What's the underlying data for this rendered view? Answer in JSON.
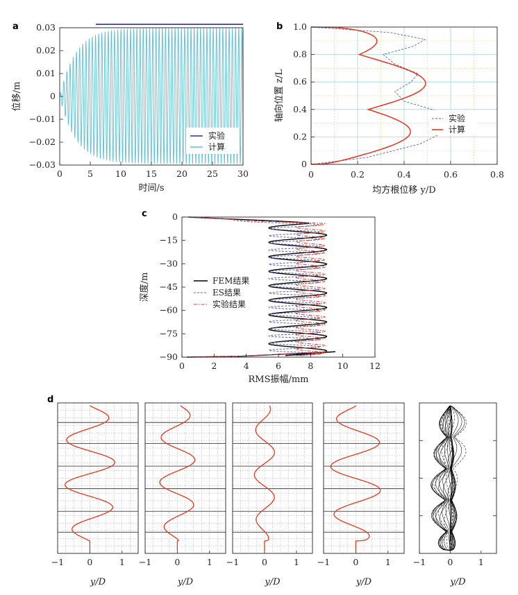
{
  "chart_data": [
    {
      "id": "a",
      "type": "line",
      "panel_label": "a",
      "xlabel": "时间/s",
      "ylabel": "位移/m",
      "xlim": [
        0,
        30
      ],
      "ylim": [
        -0.03,
        0.03
      ],
      "xticks": [
        0,
        5,
        10,
        15,
        20,
        25,
        30
      ],
      "xtick_labels": [
        "0",
        "5",
        "10",
        "15",
        "20",
        "25",
        "30"
      ],
      "yticks": [
        0.03,
        0.02,
        0.01,
        0,
        -0.01,
        -0.02,
        -0.03
      ],
      "ytick_labels": [
        "0.03",
        "0.02",
        "0.01",
        "0",
        "−0.01",
        "−0.02",
        "−0.03"
      ],
      "series": [
        {
          "name": "实验",
          "color": "#2b2f8f",
          "style": "solid",
          "x": [
            5.9,
            30
          ],
          "y": [
            0.0315,
            0.0315
          ]
        },
        {
          "name": "计算",
          "color": "#5bbfd0",
          "style": "oscillation",
          "frequency_hz": 1.92,
          "growth_tau_s": 2.6,
          "amplitude_pos": 0.0298,
          "amplitude_neg": 0.0293,
          "x_range": [
            0,
            30
          ]
        }
      ],
      "legend_position": "lower-right",
      "grid": false
    },
    {
      "id": "b",
      "type": "line",
      "panel_label": "b",
      "xlabel": "均方根位移 y/D",
      "ylabel": "轴向位置 z/L",
      "xlim": [
        0,
        0.8
      ],
      "ylim": [
        0,
        1.0
      ],
      "xticks": [
        0,
        0.2,
        0.4,
        0.6,
        0.8
      ],
      "xtick_labels": [
        "0",
        "0.2",
        "0.4",
        "0.6",
        "0.8"
      ],
      "yticks": [
        0,
        0.2,
        0.4,
        0.6,
        0.8,
        1.0
      ],
      "ytick_labels": [
        "0",
        "0.2",
        "0.4",
        "0.6",
        "0.8",
        "1.0"
      ],
      "series": [
        {
          "name": "实验",
          "color": "#5a5fb0",
          "style": "dashed",
          "x": [
            0,
            0.24,
            0.47,
            0.6,
            0.63,
            0.52,
            0.4,
            0.36,
            0.43,
            0.46,
            0.36,
            0.31,
            0.44,
            0.49,
            0.34,
            0.0
          ],
          "y": [
            0,
            0.05,
            0.15,
            0.26,
            0.33,
            0.4,
            0.46,
            0.53,
            0.6,
            0.66,
            0.73,
            0.8,
            0.86,
            0.91,
            0.96,
            1.0
          ]
        },
        {
          "name": "计算",
          "color": "#e8341c",
          "style": "solid",
          "model": "abs_sin",
          "amplitude": 0.5,
          "cycles": 2.5,
          "baseline": 0.25
        }
      ],
      "legend_position": "middle-right",
      "grid": true
    },
    {
      "id": "c",
      "type": "line",
      "panel_label": "c",
      "xlabel": "RMS振幅/mm",
      "ylabel": "深度/m",
      "xlim": [
        0,
        12
      ],
      "ylim": [
        -90,
        0
      ],
      "xticks": [
        0,
        2,
        4,
        6,
        8,
        10,
        12
      ],
      "xtick_labels": [
        "0",
        "2",
        "4",
        "6",
        "8",
        "10",
        "12"
      ],
      "yticks": [
        0,
        -15,
        -30,
        -45,
        -60,
        -75,
        -90
      ],
      "ytick_labels": [
        "0",
        "−15",
        "−30",
        "−45",
        "−60",
        "−75",
        "−90"
      ],
      "series": [
        {
          "name": "FEM结果",
          "color": "#000000",
          "style": "solid",
          "center": 7.2,
          "amplitude": 1.8,
          "period_m": 9.3
        },
        {
          "name": "ES结果",
          "color": "#5a5fb0",
          "style": "dashed",
          "center": 7.0,
          "amplitude": 1.6,
          "period_m": 4.6
        },
        {
          "name": "实验结果",
          "color": "#e8341c",
          "style": "dashdot",
          "center": 8.0,
          "amplitude": 0.9,
          "period_m": 4.6
        }
      ],
      "legend_position": "middle-left",
      "grid": false
    },
    {
      "id": "d",
      "type": "line",
      "panel_label": "d",
      "xlabel": "y/D",
      "xlim": [
        -1,
        1.5
      ],
      "xticks": [
        -1,
        0,
        1
      ],
      "xtick_labels": [
        "−1",
        "0",
        "1"
      ],
      "series_color": "#e8341c",
      "snapshots": [
        {
          "amplitude": 0.78,
          "cycles": 3.2,
          "phase": 0.0
        },
        {
          "amplitude": 0.55,
          "cycles": 3.2,
          "phase": 0.35
        },
        {
          "amplitude": 0.32,
          "cycles": 3.2,
          "phase": 1.4
        },
        {
          "amplitude": 0.78,
          "cycles": 3.0,
          "phase": 3.1
        }
      ],
      "envelope": {
        "color": "#000000",
        "lobes": 4.6,
        "max_amplitude": 0.75
      }
    }
  ]
}
